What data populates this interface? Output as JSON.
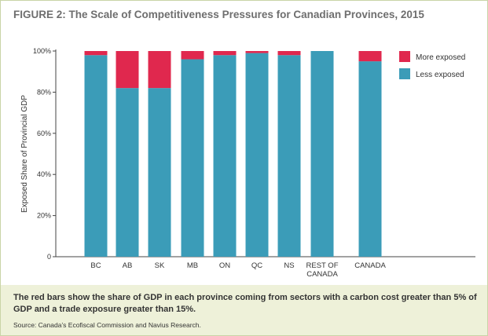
{
  "title": "FIGURE 2: The Scale of Competitiveness Pressures for Canadian Provinces, 2015",
  "note": "The red bars show the share of GDP in each province coming from sectors with a carbon cost greater than 5% of GDP and a trade exposure greater than 15%.",
  "source": "Source: Canada’s Ecofiscal Commission and Navius Research.",
  "colors": {
    "more_exposed": "#e0284e",
    "less_exposed": "#3b9cb8"
  },
  "chart_data": {
    "type": "bar",
    "stacked": true,
    "categories": [
      [
        "BC"
      ],
      [
        "AB"
      ],
      [
        "SK"
      ],
      [
        "MB"
      ],
      [
        "ON"
      ],
      [
        "QC"
      ],
      [
        "NS"
      ],
      [
        "REST OF",
        "CANADA"
      ],
      [
        "CANADA"
      ]
    ],
    "series": [
      {
        "name": "Less exposed",
        "values": [
          98,
          82,
          82,
          96,
          98,
          99,
          98,
          100,
          95
        ]
      },
      {
        "name": "More exposed",
        "values": [
          2,
          18,
          18,
          4,
          2,
          1,
          2,
          0,
          5
        ]
      }
    ],
    "ylabel": "Exposed Share of Provincial GDP",
    "ylim": [
      0,
      100
    ],
    "yticks": [
      "0",
      "20%",
      "40%",
      "60%",
      "80%",
      "100%"
    ],
    "ytick_values": [
      0,
      20,
      40,
      60,
      80,
      100
    ],
    "legend": {
      "placement": "top-right",
      "entries": [
        {
          "label": "More exposed",
          "series": "More exposed"
        },
        {
          "label": "Less exposed",
          "series": "Less exposed"
        }
      ]
    }
  }
}
